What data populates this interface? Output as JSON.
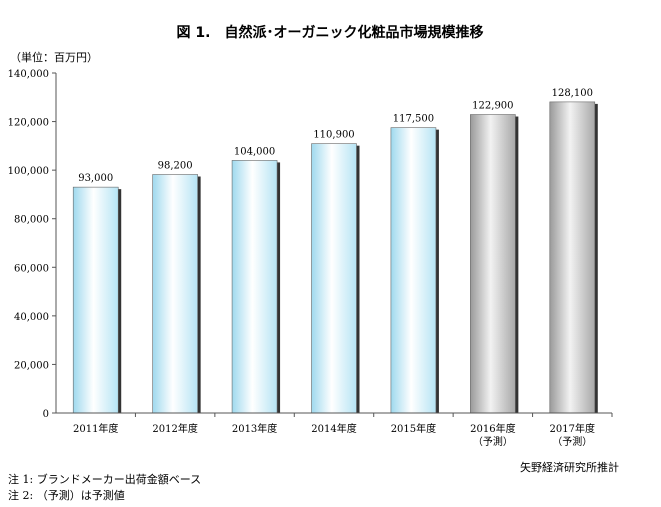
{
  "chart_data": {
    "type": "bar",
    "title": "図 1.　自然派･オーガニック化粧品市場規模推移",
    "unit_label": "（単位：百万円）",
    "categories": [
      {
        "line1": "2011年度",
        "line2": ""
      },
      {
        "line1": "2012年度",
        "line2": ""
      },
      {
        "line1": "2013年度",
        "line2": ""
      },
      {
        "line1": "2014年度",
        "line2": ""
      },
      {
        "line1": "2015年度",
        "line2": ""
      },
      {
        "line1": "2016年度",
        "line2": "（予測）"
      },
      {
        "line1": "2017年度",
        "line2": "（予測）"
      }
    ],
    "values": [
      93000,
      98200,
      104000,
      110900,
      117500,
      122900,
      128100
    ],
    "value_labels": [
      "93,000",
      "98,200",
      "104,000",
      "110,900",
      "117,500",
      "122,900",
      "128,100"
    ],
    "forecast": [
      false,
      false,
      false,
      false,
      false,
      true,
      true
    ],
    "ylim": [
      0,
      140000
    ],
    "yticks": [
      0,
      20000,
      40000,
      60000,
      80000,
      100000,
      120000,
      140000
    ],
    "ytick_labels": [
      "0",
      "20,000",
      "40,000",
      "60,000",
      "80,000",
      "100,000",
      "120,000",
      "140,000"
    ],
    "grid": false,
    "colors": {
      "actual": "#d6f2fb",
      "forecast": "#b9b9b9",
      "shadow": "#333333",
      "axis": "#555555"
    }
  },
  "source": "矢野経済研究所推計",
  "notes": [
    "注 1:  ブランドメーカー出荷金額ベース",
    "注 2:  （予測）は予測値"
  ]
}
